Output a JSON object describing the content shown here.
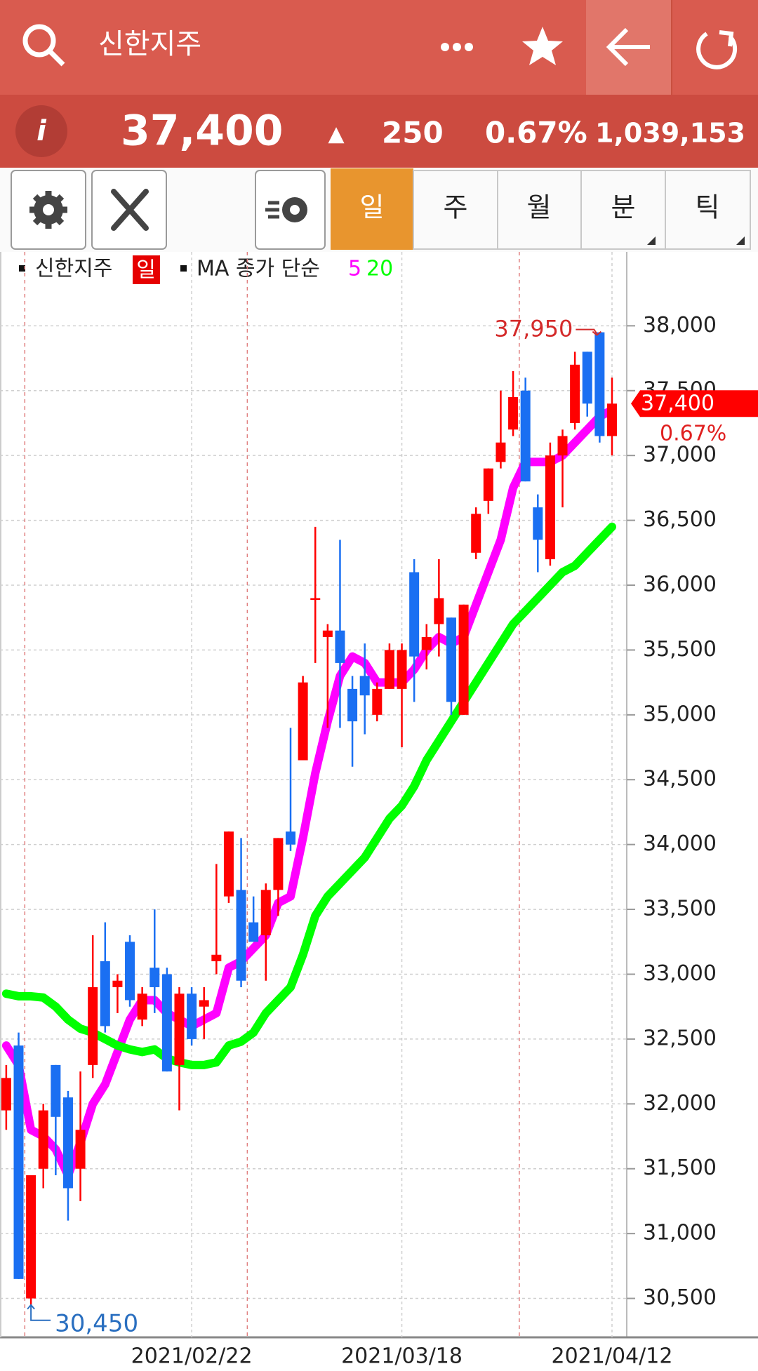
{
  "header": {
    "title": "신한지주",
    "price": "37,400",
    "arrow": "▲",
    "change": "250",
    "change_pct": "0.67%",
    "volume": "1,039,153"
  },
  "tabs": [
    "일",
    "주",
    "월",
    "분",
    "틱"
  ],
  "chart_data": {
    "type": "candlestick",
    "name": "신한지주",
    "period": "일",
    "ma_label": "MA 종가 단순",
    "categories": [
      null,
      null,
      null,
      null,
      null,
      null,
      null,
      null,
      null,
      null,
      null,
      null,
      null,
      null,
      null,
      "2021/02/22",
      null,
      null,
      null,
      null,
      null,
      null,
      null,
      null,
      null,
      null,
      null,
      null,
      null,
      null,
      null,
      null,
      "2021/03/18",
      null,
      null,
      null,
      null,
      null,
      null,
      null,
      null,
      null,
      null,
      null,
      null,
      null,
      null,
      null,
      null,
      "2021/04/12"
    ],
    "open": [
      31950,
      32450,
      30500,
      31500,
      32300,
      32050,
      31500,
      32300,
      33100,
      32900,
      33250,
      32650,
      33050,
      33000,
      32300,
      32850,
      32750,
      33100,
      33600,
      33650,
      33400,
      33300,
      33650,
      34100,
      34650,
      35900,
      35600,
      35650,
      35200,
      35300,
      35000,
      35200,
      35200,
      36100,
      35500,
      35700,
      35750,
      35000,
      36250,
      36650,
      36950,
      37200,
      37500,
      36600,
      36200,
      37000,
      37250,
      37800,
      37950,
      37150
    ],
    "high": [
      32300,
      32550,
      31450,
      32000,
      32300,
      32100,
      32250,
      33300,
      33400,
      33000,
      33300,
      32900,
      33500,
      33050,
      32900,
      32900,
      32900,
      33850,
      34100,
      34050,
      33600,
      33700,
      34050,
      34900,
      35300,
      36450,
      35700,
      36350,
      35300,
      35550,
      35250,
      35550,
      35550,
      36200,
      35700,
      36200,
      35750,
      35850,
      36600,
      36900,
      37500,
      37650,
      37600,
      36700,
      37100,
      37200,
      37800,
      37800,
      37950,
      37600
    ],
    "low": [
      31800,
      30650,
      30450,
      31350,
      31450,
      31100,
      31250,
      32200,
      32550,
      32700,
      32750,
      32600,
      32700,
      32250,
      31950,
      32450,
      32500,
      33000,
      33550,
      32900,
      33250,
      32950,
      33450,
      33950,
      34650,
      35400,
      34900,
      34900,
      34600,
      34850,
      34950,
      35200,
      34750,
      35100,
      35350,
      35450,
      35000,
      35000,
      36200,
      36550,
      36900,
      37150,
      36800,
      36100,
      36150,
      36600,
      37200,
      37300,
      37100,
      37000
    ],
    "close": [
      32200,
      30650,
      31450,
      31950,
      31900,
      31350,
      31800,
      32900,
      32600,
      32950,
      32800,
      32850,
      32900,
      32250,
      32850,
      32500,
      32800,
      33150,
      34100,
      32950,
      33250,
      33650,
      34050,
      34000,
      35250,
      35900,
      35650,
      35400,
      34950,
      35150,
      35200,
      35500,
      35500,
      35450,
      35600,
      35900,
      35100,
      35850,
      36550,
      36900,
      37100,
      37450,
      36800,
      36350,
      37000,
      37150,
      37700,
      37400,
      37150,
      37400
    ],
    "up_color": "#ff0000",
    "down_color": "#1a6ff2",
    "series": [
      {
        "name": "5",
        "color": "#ff00ff",
        "values": [
          32450,
          32300,
          31800,
          31750,
          31650,
          31450,
          31700,
          32000,
          32150,
          32400,
          32650,
          32800,
          32800,
          32700,
          32650,
          32600,
          32650,
          32700,
          33050,
          33100,
          33200,
          33300,
          33550,
          33600,
          34050,
          34550,
          34950,
          35300,
          35450,
          35400,
          35250,
          35250,
          35250,
          35350,
          35500,
          35600,
          35550,
          35600,
          35850,
          36100,
          36350,
          36750,
          36950,
          36950,
          36950,
          37000,
          37100,
          37200,
          37300,
          37350
        ]
      },
      {
        "name": "20",
        "color": "#00ff00",
        "values": [
          32850,
          32830,
          32830,
          32820,
          32750,
          32650,
          32580,
          32550,
          32500,
          32450,
          32420,
          32400,
          32420,
          32350,
          32320,
          32300,
          32300,
          32320,
          32450,
          32480,
          32550,
          32700,
          32800,
          32900,
          33150,
          33450,
          33600,
          33700,
          33800,
          33900,
          34050,
          34200,
          34300,
          34450,
          34650,
          34800,
          34950,
          35100,
          35250,
          35400,
          35550,
          35700,
          35800,
          35900,
          36000,
          36100,
          36150,
          36250,
          36350,
          36450
        ]
      }
    ],
    "ylim": [
      30200,
      38570
    ],
    "yticks": [
      {
        "value": 30500,
        "label": "30,500"
      },
      {
        "value": 31000,
        "label": "31,000"
      },
      {
        "value": 31500,
        "label": "31,500"
      },
      {
        "value": 32000,
        "label": "32,000"
      },
      {
        "value": 32500,
        "label": "32,500"
      },
      {
        "value": 33000,
        "label": "33,000"
      },
      {
        "value": 33500,
        "label": "33,500"
      },
      {
        "value": 34000,
        "label": "34,000"
      },
      {
        "value": 34500,
        "label": "34,500"
      },
      {
        "value": 35000,
        "label": "35,000"
      },
      {
        "value": 35500,
        "label": "35,500"
      },
      {
        "value": 36000,
        "label": "36,000"
      },
      {
        "value": 36500,
        "label": "36,500"
      },
      {
        "value": 37000,
        "label": "37,000"
      },
      {
        "value": 37500,
        "label": "37,500"
      },
      {
        "value": 38000,
        "label": "38,000"
      }
    ],
    "grid": true,
    "high_label": {
      "value": 37950,
      "label": "37,950"
    },
    "low_label": {
      "value": 30450,
      "label": "30,450"
    },
    "last_label": {
      "value": 37400,
      "label": "37,400"
    },
    "last_change": "0.67%"
  }
}
